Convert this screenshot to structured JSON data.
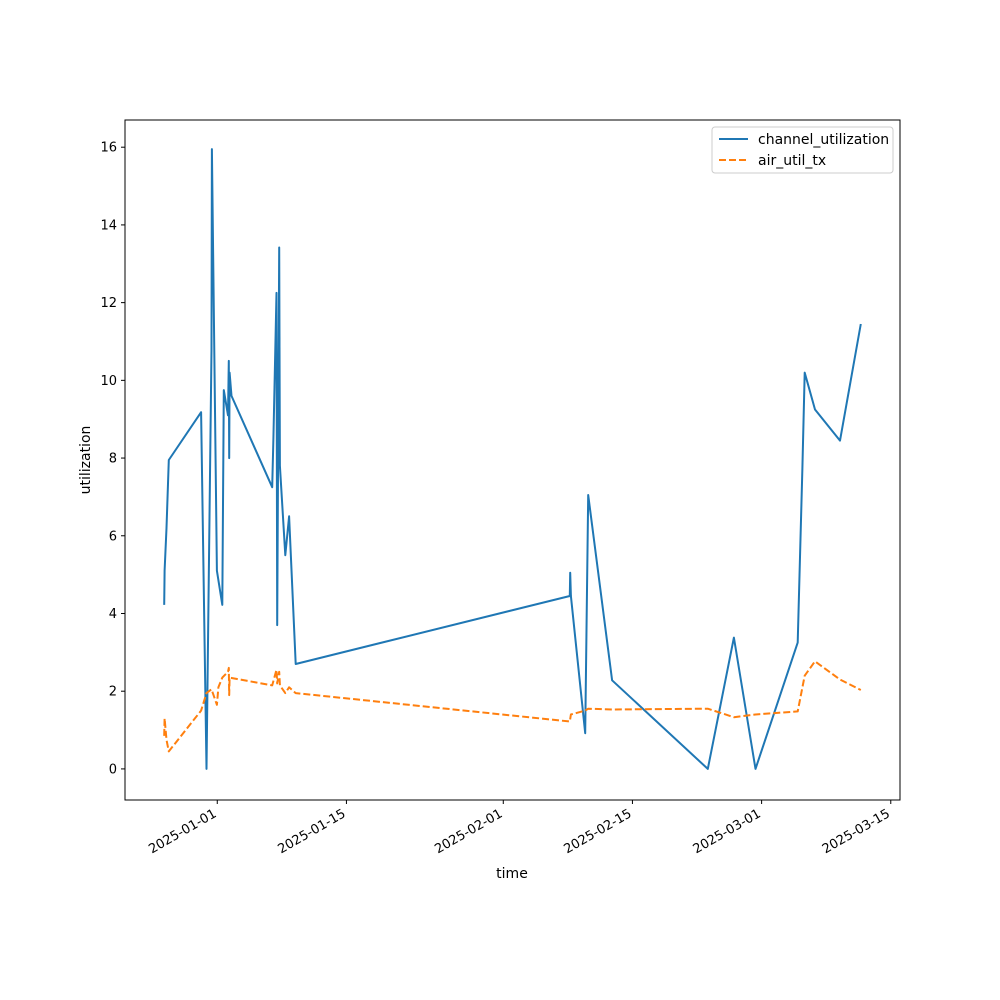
{
  "chart_data": {
    "type": "line",
    "xlabel": "time",
    "ylabel": "utilization",
    "x_is_date": true,
    "xlim": [
      "2024-12-22",
      "2025-03-16"
    ],
    "ylim": [
      -0.8,
      16.7
    ],
    "x_ticks": [
      "2025-01-01",
      "2025-01-15",
      "2025-02-01",
      "2025-02-15",
      "2025-03-01",
      "2025-03-15"
    ],
    "y_ticks": [
      0,
      2,
      4,
      6,
      8,
      10,
      12,
      14,
      16
    ],
    "legend_position": "top-right",
    "grid": false,
    "series": [
      {
        "name": "channel_utilization",
        "color": "#1f77b4",
        "dash": "solid",
        "points": [
          [
            "2024-12-26 06:00",
            4.22
          ],
          [
            "2024-12-26 07:00",
            5.1
          ],
          [
            "2024-12-26 12:00",
            6.2
          ],
          [
            "2024-12-26 18:00",
            7.95
          ],
          [
            "2024-12-30 06:00",
            9.18
          ],
          [
            "2024-12-30 20:00",
            0.0
          ],
          [
            "2024-12-31 09:00",
            10.8
          ],
          [
            "2024-12-31 10:00",
            15.95
          ],
          [
            "2024-12-31 23:00",
            5.1
          ],
          [
            "2025-01-01 13:00",
            4.22
          ],
          [
            "2025-01-01 17:00",
            9.75
          ],
          [
            "2025-01-02 04:00",
            9.1
          ],
          [
            "2025-01-02 06:00",
            10.5
          ],
          [
            "2025-01-02 07:00",
            8.0
          ],
          [
            "2025-01-02 08:00",
            10.2
          ],
          [
            "2025-01-02 13:00",
            9.6
          ],
          [
            "2025-01-06 23:00",
            7.25
          ],
          [
            "2025-01-07 02:00",
            8.5
          ],
          [
            "2025-01-07 10:00",
            12.25
          ],
          [
            "2025-01-07 12:00",
            3.7
          ],
          [
            "2025-01-07 17:00",
            13.42
          ],
          [
            "2025-01-07 19:00",
            7.8
          ],
          [
            "2025-01-08 09:00",
            5.5
          ],
          [
            "2025-01-08 19:00",
            6.5
          ],
          [
            "2025-01-09 12:00",
            2.7
          ],
          [
            "2025-02-08 05:00",
            4.45
          ],
          [
            "2025-02-08 06:00",
            5.05
          ],
          [
            "2025-02-08 08:00",
            4.45
          ],
          [
            "2025-02-09 21:00",
            0.92
          ],
          [
            "2025-02-10 05:00",
            7.05
          ],
          [
            "2025-02-12 19:00",
            2.28
          ],
          [
            "2025-02-23 04:00",
            0.0
          ],
          [
            "2025-02-26 00:00",
            3.38
          ],
          [
            "2025-02-28 08:00",
            0.0
          ],
          [
            "2025-03-04 22:00",
            3.25
          ],
          [
            "2025-03-05 10:00",
            7.75
          ],
          [
            "2025-03-05 16:00",
            10.2
          ],
          [
            "2025-03-06 19:00",
            9.25
          ],
          [
            "2025-03-09 12:00",
            8.45
          ],
          [
            "2025-03-11 18:00",
            11.45
          ]
        ]
      },
      {
        "name": "air_util_tx",
        "color": "#ff7f0e",
        "dash": "dashed",
        "points": [
          [
            "2024-12-26 06:00",
            0.85
          ],
          [
            "2024-12-26 07:00",
            1.3
          ],
          [
            "2024-12-26 12:00",
            0.75
          ],
          [
            "2024-12-26 18:00",
            0.45
          ],
          [
            "2024-12-30 06:00",
            1.5
          ],
          [
            "2024-12-30 20:00",
            1.95
          ],
          [
            "2024-12-31 09:00",
            2.05
          ],
          [
            "2024-12-31 23:00",
            1.65
          ],
          [
            "2025-01-01 03:00",
            2.1
          ],
          [
            "2025-01-01 13:00",
            2.35
          ],
          [
            "2025-01-02 04:00",
            2.5
          ],
          [
            "2025-01-02 06:00",
            2.6
          ],
          [
            "2025-01-02 07:00",
            1.9
          ],
          [
            "2025-01-02 08:00",
            2.35
          ],
          [
            "2025-01-06 23:00",
            2.15
          ],
          [
            "2025-01-07 10:00",
            2.55
          ],
          [
            "2025-01-07 12:00",
            2.2
          ],
          [
            "2025-01-07 17:00",
            2.5
          ],
          [
            "2025-01-07 19:00",
            2.15
          ],
          [
            "2025-01-08 09:00",
            1.95
          ],
          [
            "2025-01-08 19:00",
            2.1
          ],
          [
            "2025-01-09 12:00",
            1.95
          ],
          [
            "2025-02-08 05:00",
            1.22
          ],
          [
            "2025-02-08 08:00",
            1.4
          ],
          [
            "2025-02-09 21:00",
            1.5
          ],
          [
            "2025-02-10 05:00",
            1.55
          ],
          [
            "2025-02-12 19:00",
            1.53
          ],
          [
            "2025-02-23 04:00",
            1.55
          ],
          [
            "2025-02-26 00:00",
            1.33
          ],
          [
            "2025-02-28 08:00",
            1.4
          ],
          [
            "2025-03-04 22:00",
            1.48
          ],
          [
            "2025-03-05 16:00",
            2.4
          ],
          [
            "2025-03-06 19:00",
            2.77
          ],
          [
            "2025-03-09 12:00",
            2.3
          ],
          [
            "2025-03-11 18:00",
            2.03
          ]
        ]
      }
    ]
  }
}
